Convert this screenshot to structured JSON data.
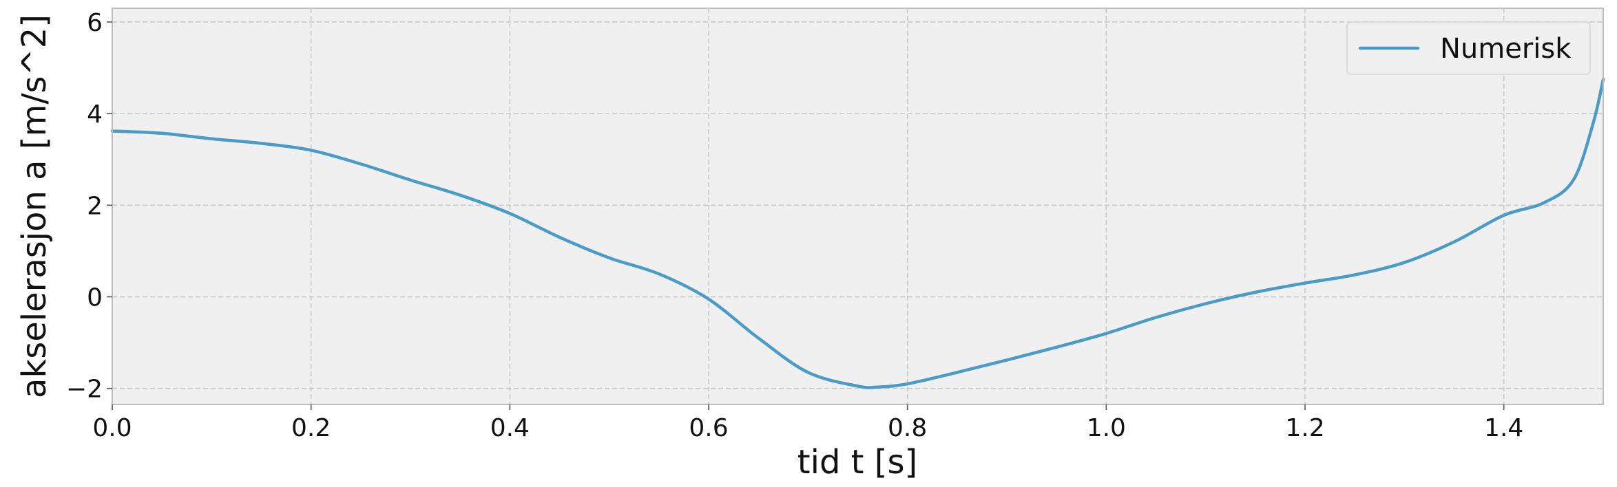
{
  "chart_data": {
    "type": "line",
    "title": "",
    "xlabel": "tid t [s]",
    "ylabel": "akselerasjon a [m/s^2]",
    "xlim": [
      0.0,
      1.5
    ],
    "ylim": [
      -2.35,
      6.3
    ],
    "xticks": [
      0.0,
      0.2,
      0.4,
      0.6,
      0.8,
      1.0,
      1.2,
      1.4
    ],
    "xtick_labels": [
      "0.0",
      "0.2",
      "0.4",
      "0.6",
      "0.8",
      "1.0",
      "1.2",
      "1.4"
    ],
    "yticks": [
      -2,
      0,
      2,
      4,
      6
    ],
    "ytick_labels": [
      "−2",
      "0",
      "2",
      "4",
      "6"
    ],
    "grid": true,
    "legend_position": "top-right",
    "colors": {
      "plot_background": "#f0f0f0",
      "frame": "#bcbcbc",
      "grid": "#c8c8c8",
      "series": "#4a9cc7"
    },
    "series": [
      {
        "name": "Numerisk",
        "color": "#4a9cc7",
        "x": [
          0.0,
          0.05,
          0.1,
          0.15,
          0.2,
          0.25,
          0.3,
          0.35,
          0.4,
          0.45,
          0.5,
          0.55,
          0.6,
          0.65,
          0.7,
          0.75,
          0.77,
          0.8,
          0.85,
          0.9,
          0.95,
          1.0,
          1.05,
          1.1,
          1.15,
          1.2,
          1.25,
          1.3,
          1.35,
          1.4,
          1.44,
          1.47,
          1.49,
          1.5
        ],
        "y": [
          3.62,
          3.57,
          3.45,
          3.35,
          3.2,
          2.9,
          2.55,
          2.22,
          1.82,
          1.3,
          0.85,
          0.5,
          -0.05,
          -0.9,
          -1.65,
          -1.95,
          -1.97,
          -1.9,
          -1.65,
          -1.38,
          -1.1,
          -0.8,
          -0.45,
          -0.15,
          0.1,
          0.3,
          0.48,
          0.75,
          1.2,
          1.78,
          2.05,
          2.55,
          3.8,
          4.75
        ]
      }
    ]
  }
}
